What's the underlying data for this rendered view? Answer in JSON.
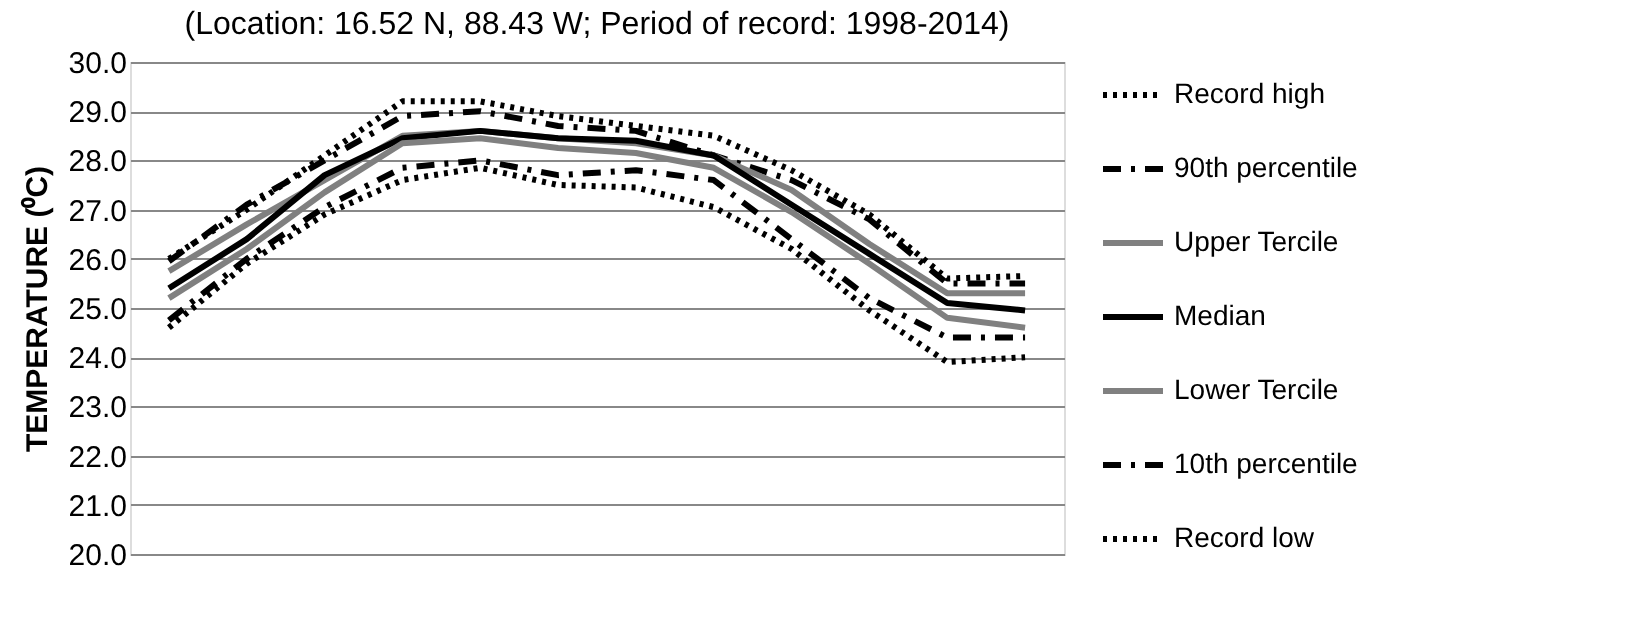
{
  "chart_data": {
    "type": "line",
    "title": "(Location: 16.52 N, 88.43 W; Period of record: 1998-2014)",
    "ylabel": "TEMPERATURE (⁰C)",
    "categories": [
      null,
      null,
      null,
      null,
      null,
      null,
      null,
      null,
      null,
      null,
      null,
      null
    ],
    "ylim": [
      20,
      30
    ],
    "yticks": [
      {
        "value": 20,
        "label": "20.0"
      },
      {
        "value": 21,
        "label": "21.0"
      },
      {
        "value": 22,
        "label": "22.0"
      },
      {
        "value": 23,
        "label": "23.0"
      },
      {
        "value": 24,
        "label": "24.0"
      },
      {
        "value": 25,
        "label": "25.0"
      },
      {
        "value": 26,
        "label": "26.0"
      },
      {
        "value": 27,
        "label": "27.0"
      },
      {
        "value": 28,
        "label": "28.0"
      },
      {
        "value": 29,
        "label": "29.0"
      },
      {
        "value": 30,
        "label": "30.0"
      }
    ],
    "grid": "y",
    "legend": "right",
    "marker": "none",
    "series": [
      {
        "name": "Record high",
        "color": "#000000",
        "line_style": "dotted",
        "values": [
          26.0,
          27.0,
          28.1,
          29.2,
          29.2,
          28.9,
          28.7,
          28.5,
          27.8,
          26.9,
          25.6,
          25.65
        ]
      },
      {
        "name": "90th percentile",
        "color": "#000000",
        "line_style": "dashed",
        "values": [
          25.95,
          27.1,
          28.0,
          28.9,
          29.0,
          28.7,
          28.6,
          28.1,
          27.6,
          26.8,
          25.5,
          25.5
        ]
      },
      {
        "name": "Upper Tercile",
        "color": "#808080",
        "line_style": "solid",
        "values": [
          25.75,
          26.7,
          27.6,
          28.5,
          28.6,
          28.45,
          28.35,
          28.1,
          27.4,
          26.3,
          25.3,
          25.3
        ]
      },
      {
        "name": "Median",
        "color": "#000000",
        "line_style": "solid",
        "values": [
          25.4,
          26.4,
          27.7,
          28.45,
          28.6,
          28.45,
          28.4,
          28.1,
          27.1,
          26.1,
          25.1,
          24.95
        ]
      },
      {
        "name": "Lower Tercile",
        "color": "#808080",
        "line_style": "solid",
        "values": [
          25.2,
          26.2,
          27.35,
          28.35,
          28.45,
          28.25,
          28.15,
          27.85,
          26.95,
          25.9,
          24.8,
          24.6
        ]
      },
      {
        "name": "10th percentile",
        "color": "#000000",
        "line_style": "dashed",
        "values": [
          24.75,
          26.0,
          27.05,
          27.85,
          28.0,
          27.7,
          27.8,
          27.6,
          26.4,
          25.2,
          24.4,
          24.4
        ]
      },
      {
        "name": "Record low",
        "color": "#000000",
        "line_style": "dotted",
        "values": [
          24.6,
          25.9,
          26.9,
          27.6,
          27.85,
          27.5,
          27.45,
          27.05,
          26.2,
          24.95,
          23.9,
          24.0
        ]
      }
    ]
  }
}
